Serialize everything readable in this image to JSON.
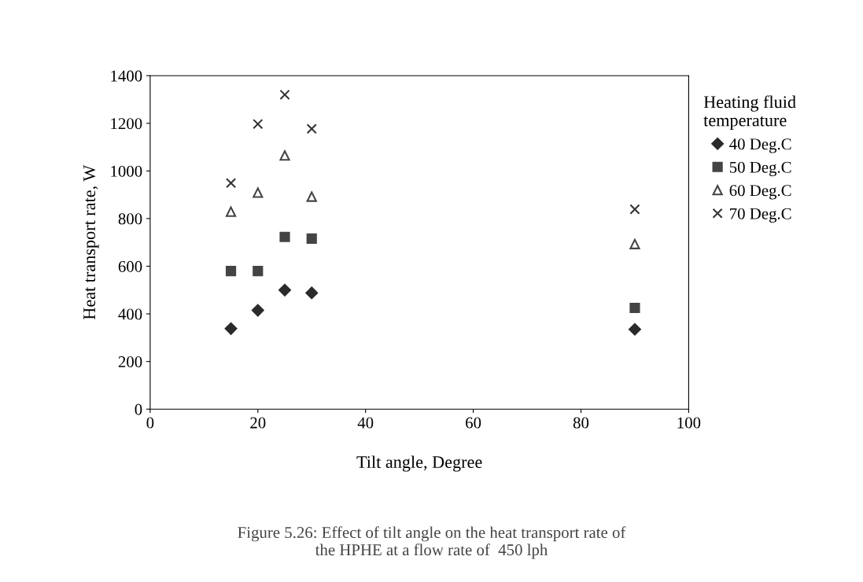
{
  "chart_data": {
    "type": "scatter",
    "xlabel": "Tilt angle, Degree",
    "ylabel": "Heat transport rate, W",
    "legend_title": "Heating fluid\ntemperature",
    "legend": "right",
    "grid": false,
    "x": [
      15,
      20,
      25,
      30,
      90
    ],
    "xlim": [
      0,
      100
    ],
    "xticks": [
      0,
      20,
      40,
      60,
      80,
      100
    ],
    "ylim": [
      0,
      1400
    ],
    "yticks": [
      0,
      200,
      400,
      600,
      800,
      1000,
      1200,
      1400
    ],
    "series": [
      {
        "name": "40 Deg.C",
        "color": "#2b2b2b",
        "marker": "diamond",
        "values": [
          338,
          415,
          500,
          488,
          335
        ]
      },
      {
        "name": "50 Deg.C",
        "color": "#444444",
        "marker": "square",
        "values": [
          580,
          580,
          723,
          716,
          425
        ]
      },
      {
        "name": "60 Deg.C",
        "color": "#444444",
        "marker": "triangle",
        "values": [
          829,
          909,
          1065,
          892,
          693
        ]
      },
      {
        "name": "70 Deg.C",
        "color": "#333333",
        "marker": "cross",
        "values": [
          949,
          1197,
          1320,
          1177,
          839
        ]
      }
    ],
    "annotations": [
      "Figure 5.26: Effect of tilt angle on the heat transport rate of\nthe HPHE at a flow rate of  450 lph"
    ]
  }
}
